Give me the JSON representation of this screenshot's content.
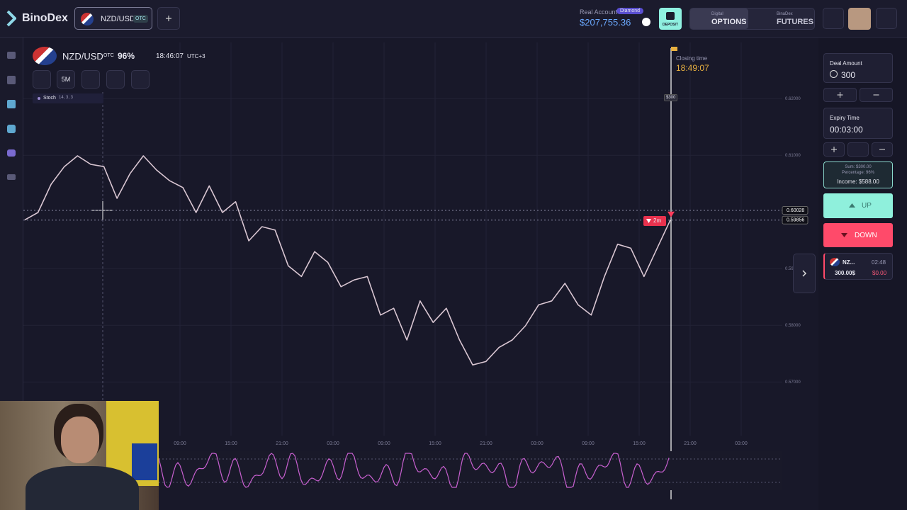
{
  "header": {
    "logo": "BinoDex",
    "tab": {
      "pair": "NZD/USD",
      "badge": "OTC"
    },
    "account": {
      "label": "Real Account",
      "tier": "Diamond",
      "balance": "$207,755.36"
    },
    "deposit": "DEPOSIT",
    "options": {
      "sub": "Digital",
      "main": "OPTIONS"
    },
    "futures": {
      "sub": "BinaDex",
      "main": "FUTURES"
    }
  },
  "chart_header": {
    "pair": "NZD/USD",
    "badge": "OTC",
    "payout": "96%",
    "time": "18:46:07",
    "timezone": "UTC+3",
    "timeframe": "5M"
  },
  "indicator": {
    "name": "Stoch",
    "params": "14, 3, 3"
  },
  "chart_data": {
    "type": "line",
    "color": "#d9c6d2",
    "values": [
      0.5986,
      0.5999,
      0.6049,
      0.608,
      0.6099,
      0.6084,
      0.608,
      0.6024,
      0.6068,
      0.6099,
      0.6074,
      0.6055,
      0.6043,
      0.5999,
      0.6046,
      0.5999,
      0.6018,
      0.5949,
      0.5974,
      0.5968,
      0.5905,
      0.5886,
      0.593,
      0.5911,
      0.5868,
      0.588,
      0.5886,
      0.5818,
      0.583,
      0.5774,
      0.5843,
      0.5805,
      0.583,
      0.5774,
      0.573,
      0.5736,
      0.5761,
      0.5774,
      0.5799,
      0.5836,
      0.5843,
      0.5874,
      0.5836,
      0.5818,
      0.5886,
      0.5943,
      0.5936,
      0.5886,
      0.5936,
      0.59856
    ],
    "ylim": [
      0.5599,
      0.6299
    ],
    "yticks": [
      {
        "value": 0.62,
        "label": "0.62000"
      },
      {
        "value": 0.61,
        "label": "0.61000"
      },
      0.59,
      {
        "value": 0.58,
        "label": "0.58000"
      },
      {
        "value": 0.57,
        "label": "0.57000"
      }
    ],
    "x_labels": [
      "09:00",
      "15:00",
      "21:00",
      "03:00",
      "09:00",
      "15:00",
      "21:00",
      "03:00",
      "09:00",
      "15:00",
      "21:00",
      "03:00"
    ],
    "markers": [
      {
        "value": 0.60028,
        "label": "0.60028"
      },
      {
        "value": 0.59856,
        "label": "0.59856"
      }
    ],
    "closing_label": "Closing time",
    "closing_time": "18:49:07",
    "expiry_amount": "$300",
    "trade_tag": "2m"
  },
  "panel": {
    "deal_label": "Deal Amount",
    "deal_amount": "300",
    "expiry_label": "Expiry Time",
    "expiry_time": "00:03:00",
    "sum": "Sum: $300.00",
    "percentage": "Percentage: 96%",
    "income": "Income: $588.00",
    "up": "UP",
    "down": "DOWN",
    "trade": {
      "pair": "NZ...",
      "timer": "02:48",
      "amount": "300.00$",
      "profit": "$0.00"
    }
  }
}
